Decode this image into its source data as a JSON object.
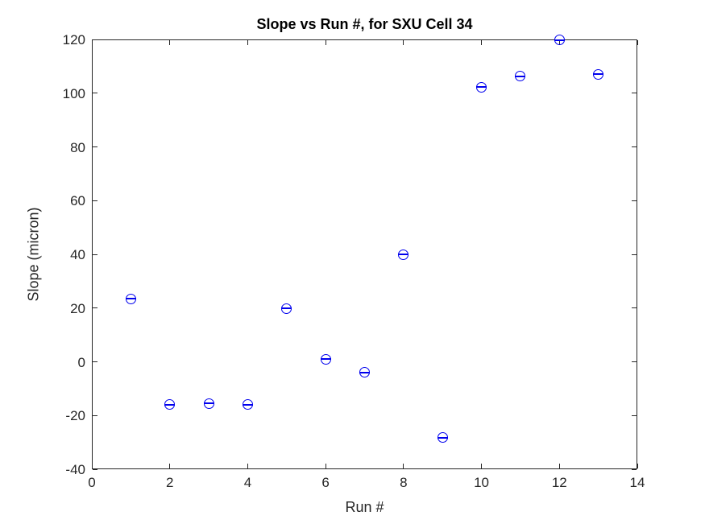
{
  "figure": {
    "background": "#ffffff"
  },
  "chart_data": {
    "type": "scatter",
    "title": "Slope vs Run #, for SXU Cell 34",
    "xlabel": "Run #",
    "ylabel": "Slope (micron)",
    "x": [
      1,
      2,
      3,
      4,
      5,
      6,
      7,
      8,
      9,
      10,
      11,
      12,
      13
    ],
    "y": [
      23.5,
      -16,
      -15.5,
      -16,
      19.9,
      1,
      -4,
      40,
      -28.3,
      102.2,
      106.3,
      119.8,
      107.1
    ],
    "series_name": "Slope",
    "marker": "open-circle-with-horizontal-errorbar-cap",
    "marker_color": "#0000EE",
    "axis_color": "#262626",
    "title_color": "#000000",
    "xlim": [
      0,
      14
    ],
    "ylim": [
      -40,
      120
    ],
    "xticks": [
      0,
      2,
      4,
      6,
      8,
      10,
      12,
      14
    ],
    "yticks": [
      -40,
      -20,
      0,
      20,
      40,
      60,
      80,
      100,
      120
    ],
    "grid": false,
    "legend": null,
    "box": "on",
    "tick_direction": "in"
  }
}
